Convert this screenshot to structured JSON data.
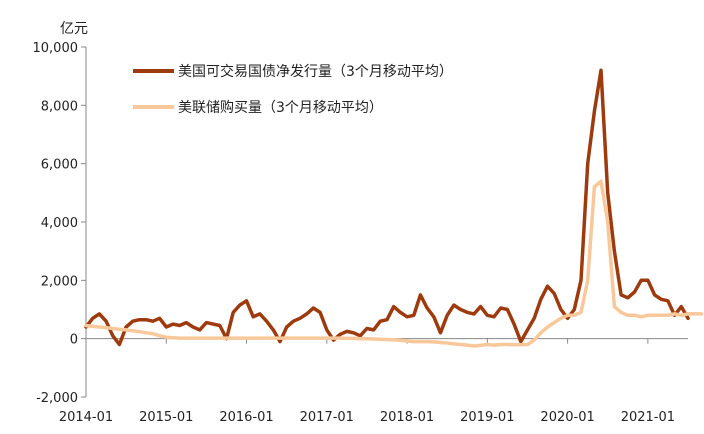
{
  "chart_data": {
    "type": "line",
    "unit_label": "亿元",
    "x_tick_labels": [
      "2014-01",
      "2015-01",
      "2016-01",
      "2017-01",
      "2018-01",
      "2019-01",
      "2020-01",
      "2021-01"
    ],
    "y_tick_labels": [
      "10,000",
      "8,000",
      "6,000",
      "4,000",
      "2,000",
      "0",
      "-2,000"
    ],
    "ylim": [
      -2000,
      10000
    ],
    "y_ticks": [
      10000,
      8000,
      6000,
      4000,
      2000,
      0,
      -2000
    ],
    "grid": false,
    "legend_position": "top-left",
    "colors": {
      "series1": "#9E3B0E",
      "series2": "#F8C89A",
      "axis": "#888888"
    },
    "series": [
      {
        "name": "美国可交易国债净发行量（3个月移动平均）",
        "start": "2014-01",
        "frequency": "monthly",
        "values": [
          400,
          700,
          850,
          600,
          100,
          -200,
          400,
          600,
          650,
          650,
          600,
          700,
          400,
          500,
          450,
          550,
          400,
          300,
          550,
          500,
          450,
          0,
          900,
          1150,
          1300,
          750,
          850,
          600,
          300,
          -100,
          400,
          600,
          700,
          850,
          1050,
          900,
          300,
          -50,
          150,
          250,
          200,
          100,
          350,
          300,
          600,
          650,
          1100,
          900,
          750,
          800,
          1500,
          1050,
          750,
          200,
          800,
          1150,
          1000,
          900,
          850,
          1100,
          800,
          750,
          1050,
          1000,
          500,
          -100,
          300,
          700,
          1350,
          1800,
          1550,
          1000,
          700,
          1000,
          2000,
          6000,
          7800,
          9200,
          5000,
          3000,
          1500,
          1400,
          1600,
          2000,
          2000,
          1500,
          1350,
          1300,
          800,
          1100,
          700
        ]
      },
      {
        "name": "美联储购买量（3个月移动平均）",
        "start": "2014-01",
        "frequency": "monthly",
        "values": [
          450,
          420,
          400,
          380,
          350,
          320,
          300,
          270,
          240,
          200,
          170,
          100,
          50,
          30,
          20,
          20,
          20,
          20,
          20,
          20,
          20,
          20,
          20,
          20,
          20,
          20,
          20,
          20,
          20,
          20,
          20,
          20,
          20,
          20,
          20,
          20,
          20,
          20,
          20,
          10,
          10,
          0,
          0,
          -10,
          -20,
          -30,
          -40,
          -60,
          -80,
          -100,
          -100,
          -100,
          -110,
          -130,
          -150,
          -180,
          -200,
          -220,
          -250,
          -230,
          -200,
          -220,
          -200,
          -200,
          -210,
          -210,
          -200,
          -50,
          200,
          400,
          550,
          700,
          800,
          800,
          900,
          2000,
          5200,
          5400,
          4000,
          1100,
          900,
          800,
          800,
          750,
          800,
          800,
          800,
          800,
          850,
          800,
          850,
          850,
          850
        ]
      }
    ]
  }
}
